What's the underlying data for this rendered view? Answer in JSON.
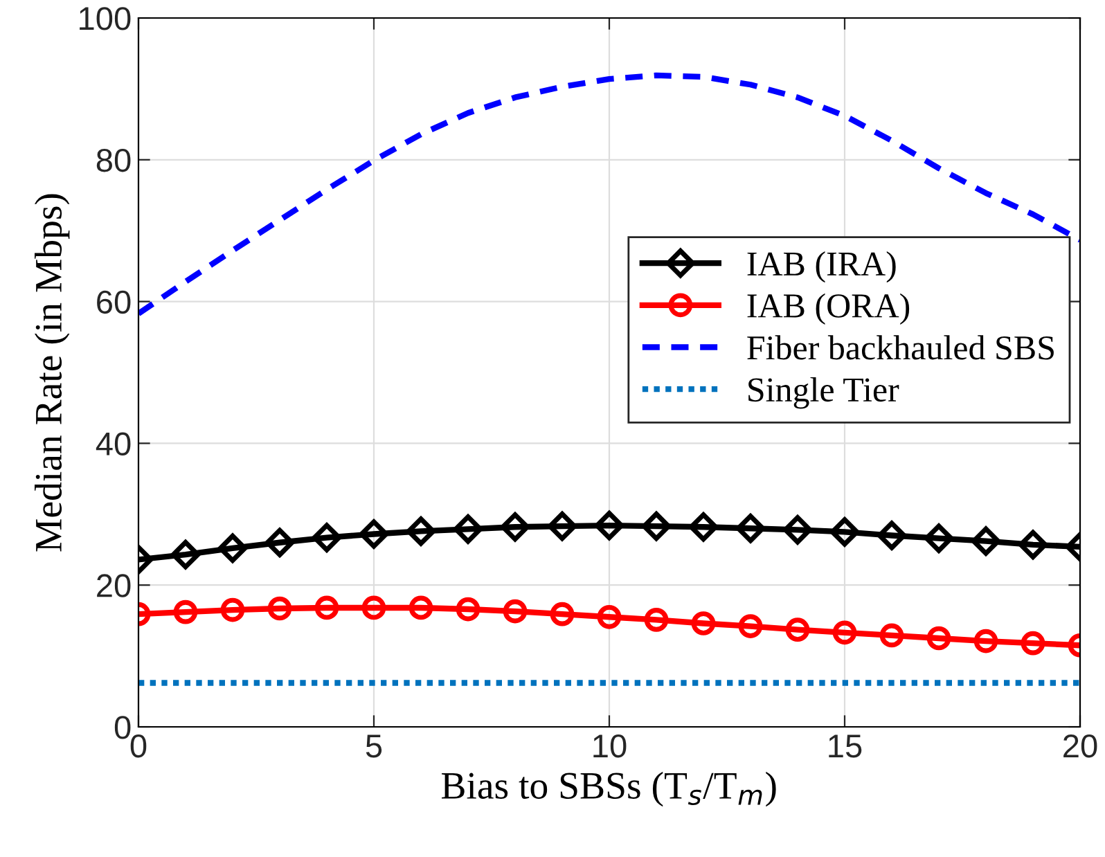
{
  "chart_data": {
    "type": "line",
    "xlabel": "Bias to SBSs (T$_{s}$/T$_{m}$)",
    "ylabel": "Median Rate (in Mbps)",
    "x": [
      0,
      1,
      2,
      3,
      4,
      5,
      6,
      7,
      8,
      9,
      10,
      11,
      12,
      13,
      14,
      15,
      16,
      17,
      18,
      19,
      20
    ],
    "series": [
      {
        "name": "IAB (IRA)",
        "color": "#000000",
        "marker": "diamond",
        "line_style": "solid",
        "values": [
          23.6,
          24.3,
          25.2,
          26.0,
          26.7,
          27.2,
          27.6,
          27.9,
          28.2,
          28.3,
          28.4,
          28.3,
          28.2,
          28.0,
          27.8,
          27.5,
          27.0,
          26.6,
          26.2,
          25.7,
          25.4
        ]
      },
      {
        "name": "IAB (ORA)",
        "color": "#ff0000",
        "marker": "circle",
        "line_style": "solid",
        "values": [
          15.9,
          16.2,
          16.5,
          16.7,
          16.8,
          16.8,
          16.8,
          16.6,
          16.3,
          15.9,
          15.5,
          15.1,
          14.6,
          14.2,
          13.7,
          13.3,
          12.9,
          12.5,
          12.1,
          11.8,
          11.5
        ]
      },
      {
        "name": "Fiber backhauled SBS",
        "color": "#0000ff",
        "marker": "none",
        "line_style": "dashed",
        "values": [
          58.3,
          62.8,
          67.2,
          71.5,
          75.8,
          79.9,
          83.6,
          86.6,
          88.8,
          90.3,
          91.4,
          91.9,
          91.7,
          90.6,
          88.8,
          86.2,
          82.7,
          78.8,
          75.3,
          72.3,
          68.7
        ]
      },
      {
        "name": "Single Tier",
        "color": "#0072bd",
        "marker": "none",
        "line_style": "dotted",
        "values": [
          6.2,
          6.2,
          6.2,
          6.2,
          6.2,
          6.2,
          6.2,
          6.2,
          6.2,
          6.2,
          6.2,
          6.2,
          6.2,
          6.2,
          6.2,
          6.2,
          6.2,
          6.2,
          6.2,
          6.2,
          6.2
        ]
      }
    ],
    "xlim": [
      0,
      20
    ],
    "xticks": [
      0,
      5,
      10,
      15,
      20
    ],
    "ylim": [
      0,
      100
    ],
    "yticks": [
      0,
      20,
      40,
      60,
      80,
      100
    ],
    "grid": true,
    "legend": "right"
  }
}
